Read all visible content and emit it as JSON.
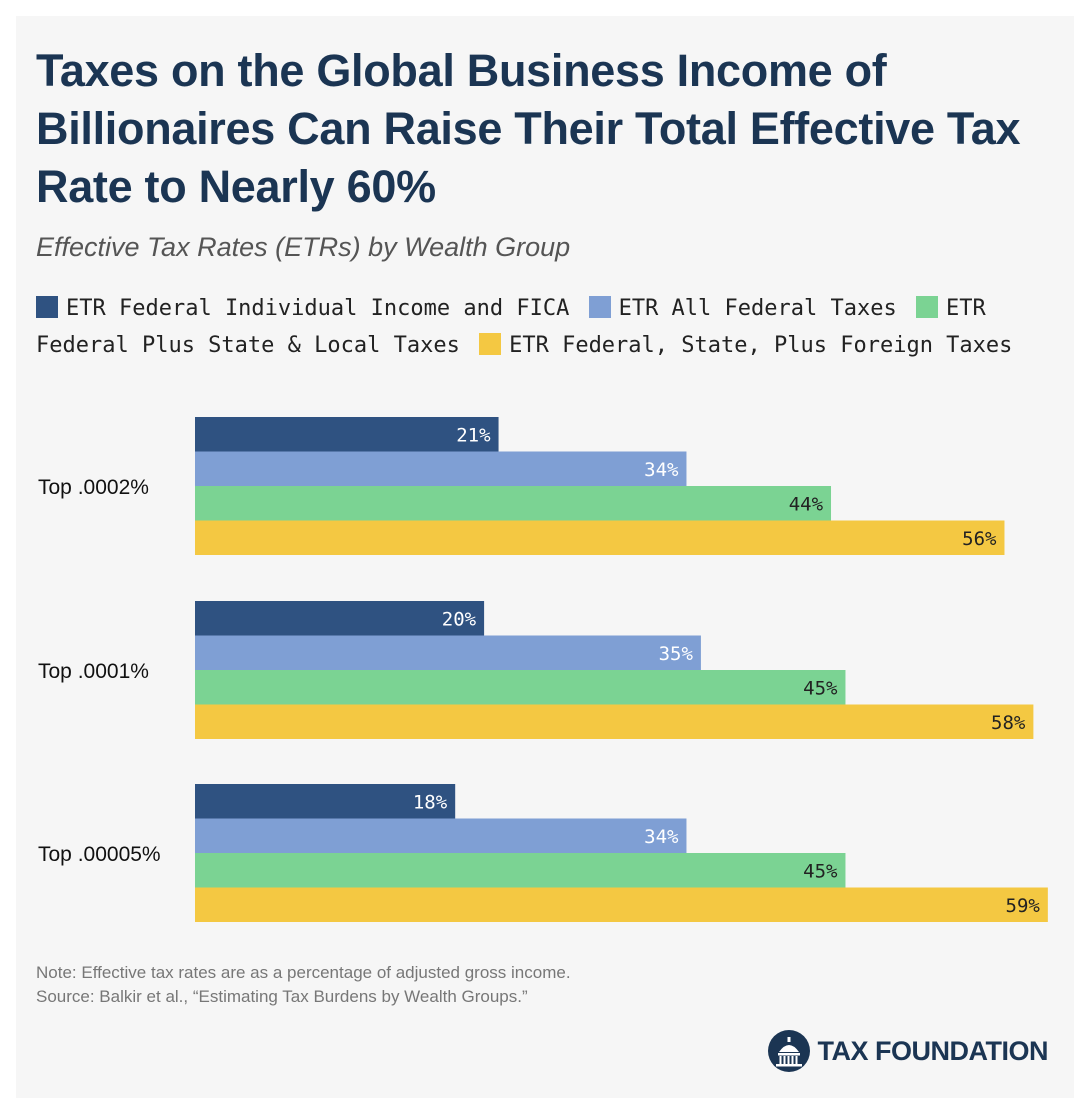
{
  "title": "Taxes on the Global Business Income of Billionaires Can Raise Their Total Effective Tax Rate to Nearly 60%",
  "subtitle": "Effective Tax Rates (ETRs) by Wealth Group",
  "note": "Note: Effective tax rates are as a percentage of adjusted gross income.",
  "source": "Source: Balkir et al., “Estimating Tax Burdens by Wealth Groups.”",
  "logo_text": "TAX FOUNDATION",
  "colors": {
    "dark_blue": "#2f5281",
    "light_blue": "#7f9fd4",
    "green": "#7bd393",
    "yellow": "#f4c842",
    "title": "#1b3553"
  },
  "chart_data": {
    "type": "bar",
    "orientation": "horizontal",
    "categories": [
      "Top .0002%",
      "Top .0001%",
      "Top .00005%"
    ],
    "series": [
      {
        "name": "ETR Federal Individual Income and FICA",
        "color": "#2f5281",
        "label_color": "#ffffff",
        "values": [
          21,
          20,
          18
        ]
      },
      {
        "name": "ETR All Federal Taxes",
        "color": "#7f9fd4",
        "label_color": "#ffffff",
        "values": [
          34,
          35,
          34
        ]
      },
      {
        "name": "ETR Federal Plus State & Local Taxes",
        "color": "#7bd393",
        "label_color": "#222222",
        "values": [
          44,
          45,
          45
        ]
      },
      {
        "name": "ETR Federal, State, Plus Foreign Taxes",
        "color": "#f4c842",
        "label_color": "#222222",
        "values": [
          56,
          58,
          59
        ]
      }
    ],
    "value_suffix": "%",
    "xlim": [
      0,
      59
    ],
    "legend_position": "top",
    "grid": false
  }
}
